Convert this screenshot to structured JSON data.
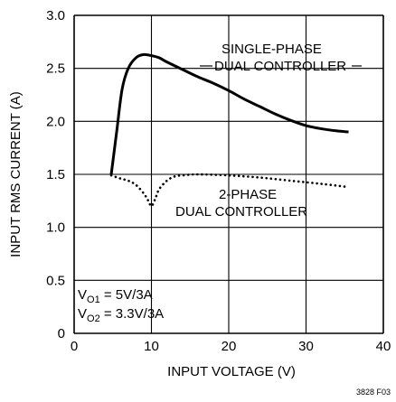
{
  "chart_data": {
    "type": "line",
    "xlabel": "INPUT VOLTAGE (V)",
    "ylabel": "INPUT RMS CURRENT (A)",
    "xlim": [
      0,
      40
    ],
    "ylim": [
      0,
      3.0
    ],
    "xticks": [
      "0",
      "10",
      "20",
      "30",
      "40"
    ],
    "yticks": [
      "0",
      "0.5",
      "1.0",
      "1.5",
      "2.0",
      "2.5",
      "3.0"
    ],
    "grid": true,
    "series": [
      {
        "name": "SINGLE-PHASE DUAL CONTROLLER",
        "style": "solid",
        "x": [
          4.8,
          5.5,
          6.2,
          7,
          8,
          9,
          10,
          11,
          12,
          14,
          16,
          18,
          20,
          22,
          24,
          26,
          28,
          30,
          32,
          34,
          35.5
        ],
        "y": [
          1.5,
          1.9,
          2.3,
          2.5,
          2.6,
          2.63,
          2.62,
          2.6,
          2.56,
          2.49,
          2.42,
          2.36,
          2.29,
          2.21,
          2.14,
          2.07,
          2.01,
          1.96,
          1.93,
          1.91,
          1.9
        ]
      },
      {
        "name": "2-PHASE DUAL CONTROLLER",
        "style": "dotted",
        "x": [
          4.8,
          6,
          7,
          8,
          9,
          9.6,
          10,
          10.5,
          11,
          12,
          13,
          14,
          16,
          20,
          24,
          28,
          32,
          35.5
        ],
        "y": [
          1.49,
          1.46,
          1.44,
          1.4,
          1.32,
          1.25,
          1.2,
          1.27,
          1.36,
          1.44,
          1.48,
          1.49,
          1.5,
          1.49,
          1.47,
          1.44,
          1.41,
          1.38
        ]
      }
    ],
    "annotations": {
      "single_line1": "SINGLE-PHASE",
      "single_line2": "DUAL CONTROLLER",
      "two_line1": "2-PHASE",
      "two_line2": "DUAL CONTROLLER",
      "vo1_sym": "V",
      "vo1_sub": "O1",
      "vo1_val": " = 5V/3A",
      "vo2_sym": "V",
      "vo2_sub": "O2",
      "vo2_val": " = 3.3V/3A"
    },
    "figure_id": "3828 F03",
    "colors": {
      "line": "#000000",
      "grid": "#000000",
      "background": "#ffffff"
    }
  }
}
